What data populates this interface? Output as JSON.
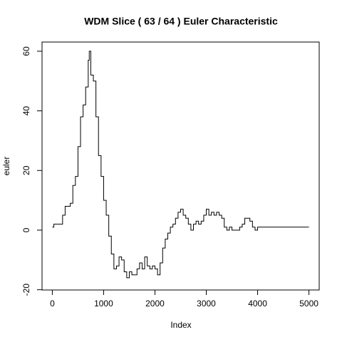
{
  "chart_data": {
    "type": "line",
    "title": "WDM Slice ( 63 / 64 ) Euler Characteristic",
    "x_label": "Index",
    "y_label": "euler",
    "step": true,
    "color": "#000000",
    "xlim": [
      -200,
      5200
    ],
    "ylim": [
      -20.08,
      63.08
    ],
    "xticks": [
      0,
      1000,
      2000,
      3000,
      4000,
      5000
    ],
    "yticks": [
      -20,
      0,
      20,
      40,
      60
    ],
    "x": [
      0,
      30,
      200,
      250,
      350,
      400,
      450,
      500,
      550,
      600,
      650,
      700,
      720,
      750,
      800,
      850,
      900,
      950,
      1000,
      1050,
      1100,
      1150,
      1200,
      1250,
      1300,
      1350,
      1400,
      1450,
      1500,
      1550,
      1600,
      1650,
      1700,
      1750,
      1800,
      1850,
      1900,
      1950,
      2000,
      2050,
      2100,
      2150,
      2200,
      2250,
      2300,
      2350,
      2400,
      2450,
      2500,
      2550,
      2600,
      2650,
      2700,
      2750,
      2800,
      2850,
      2900,
      2950,
      3000,
      3050,
      3100,
      3150,
      3200,
      3250,
      3300,
      3350,
      3400,
      3450,
      3500,
      3650,
      3700,
      3750,
      3800,
      3850,
      3900,
      3950,
      4000,
      5000
    ],
    "series": [
      {
        "name": "euler",
        "values": [
          1,
          2,
          5,
          8,
          9,
          15,
          18,
          28,
          38,
          42,
          48,
          57,
          60,
          52,
          50,
          38,
          25,
          18,
          10,
          5,
          -2,
          -8,
          -13,
          -12,
          -9,
          -10,
          -14,
          -16,
          -14,
          -15,
          -15,
          -13,
          -11,
          -13,
          -9,
          -12,
          -13,
          -12,
          -13,
          -15,
          -11,
          -6,
          -3,
          -1,
          1,
          2,
          4,
          6,
          7,
          5,
          4,
          2,
          0,
          2,
          3,
          2,
          3,
          5,
          7,
          5,
          6,
          5,
          6,
          5,
          4,
          1,
          0,
          1,
          0,
          1,
          2,
          4,
          4,
          3,
          1,
          0,
          1,
          1
        ]
      }
    ]
  }
}
